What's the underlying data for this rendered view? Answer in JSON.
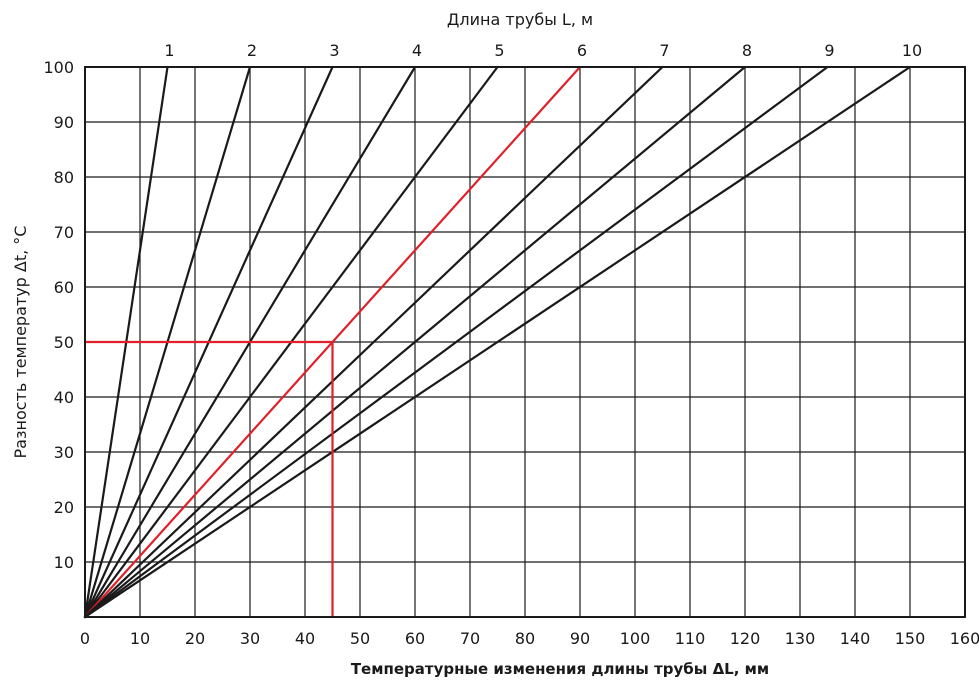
{
  "chart_data": {
    "type": "line",
    "title": "",
    "xlabel": "Температурные изменения длины трубы ΔL, мм",
    "ylabel": "Разность температур Δt, °C",
    "top_axis_label": "Длина трубы L, м",
    "xlim": [
      0,
      160
    ],
    "ylim": [
      0,
      100
    ],
    "x_ticks": [
      0,
      10,
      20,
      30,
      40,
      50,
      60,
      70,
      80,
      90,
      100,
      110,
      120,
      130,
      140,
      150,
      160
    ],
    "y_ticks": [
      10,
      20,
      30,
      40,
      50,
      60,
      70,
      80,
      90,
      100
    ],
    "grid": true,
    "series": [
      {
        "name": "1",
        "points": [
          [
            0,
            0
          ],
          [
            15,
            100
          ]
        ]
      },
      {
        "name": "2",
        "points": [
          [
            0,
            0
          ],
          [
            30,
            100
          ]
        ]
      },
      {
        "name": "3",
        "points": [
          [
            0,
            0
          ],
          [
            45,
            100
          ]
        ]
      },
      {
        "name": "4",
        "points": [
          [
            0,
            0
          ],
          [
            60,
            100
          ]
        ]
      },
      {
        "name": "5",
        "points": [
          [
            0,
            0
          ],
          [
            75,
            100
          ]
        ]
      },
      {
        "name": "6",
        "points": [
          [
            0,
            0
          ],
          [
            90,
            100
          ]
        ],
        "highlight": true
      },
      {
        "name": "7",
        "points": [
          [
            0,
            0
          ],
          [
            105,
            100
          ]
        ]
      },
      {
        "name": "8",
        "points": [
          [
            0,
            0
          ],
          [
            120,
            100
          ]
        ]
      },
      {
        "name": "9",
        "points": [
          [
            0,
            0
          ],
          [
            135,
            100
          ]
        ]
      },
      {
        "name": "10",
        "points": [
          [
            0,
            0
          ],
          [
            150,
            100
          ]
        ]
      }
    ],
    "example": {
      "delta_t": 50,
      "length_m": 6,
      "delta_l": 45
    },
    "colors": {
      "lines": "#1a1a1a",
      "highlight": "#e0202a",
      "grid": "#1a1a1a"
    }
  }
}
